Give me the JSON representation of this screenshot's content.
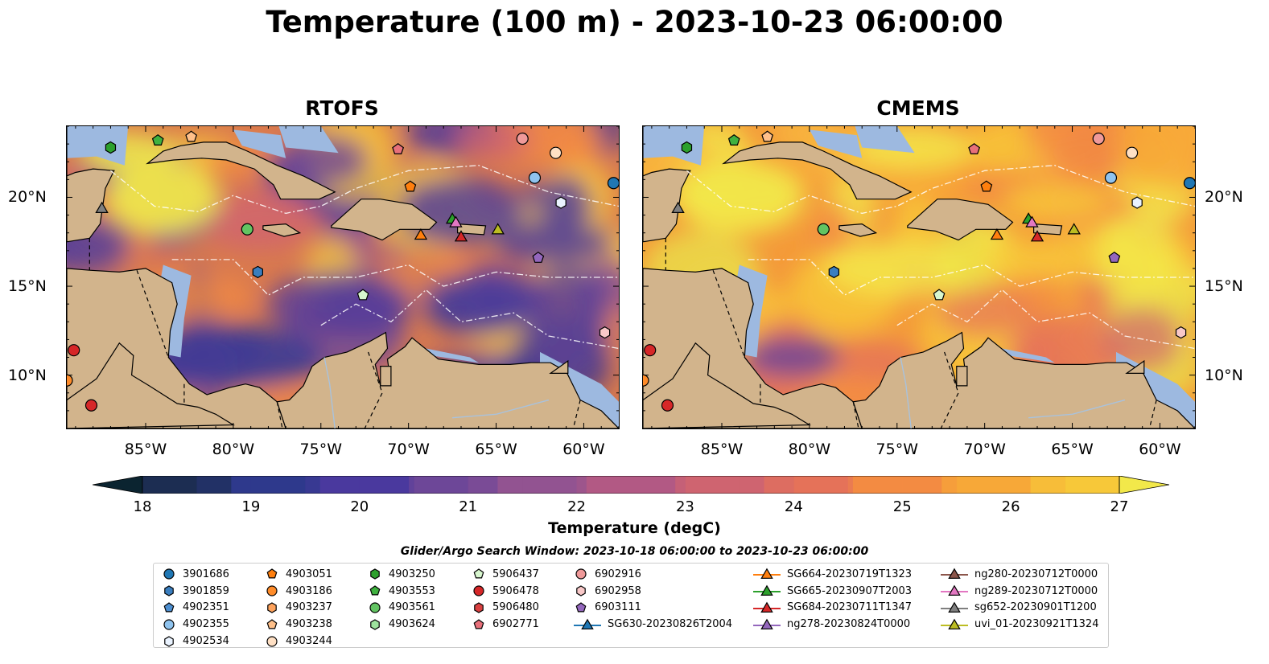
{
  "title": "Temperature (100 m) - 2023-10-23 06:00:00",
  "panels": [
    {
      "id": "rtofs",
      "title": "RTOFS",
      "style": "cool"
    },
    {
      "id": "cmems",
      "title": "CMEMS",
      "style": "warm"
    }
  ],
  "map": {
    "lon_range": [
      -89.5,
      -58.0
    ],
    "lat_range": [
      7.0,
      24.0
    ],
    "x_ticks": [
      "85°W",
      "80°W",
      "75°W",
      "70°W",
      "65°W",
      "60°W"
    ],
    "x_tick_values": [
      -85,
      -80,
      -75,
      -70,
      -65,
      -60
    ],
    "y_ticks": [
      "20°N",
      "15°N",
      "10°N"
    ],
    "y_tick_values": [
      20,
      15,
      10
    ],
    "colors": {
      "land": "#d2b48c",
      "shelf": "#9db9e0",
      "deep": "#0c2230",
      "mid": "#5a2d8a",
      "warm": "#f58a3a",
      "hot": "#f2e84a"
    }
  },
  "colorbar": {
    "label": "Temperature (degC)",
    "ticks": [
      "18",
      "19",
      "20",
      "21",
      "22",
      "23",
      "24",
      "25",
      "26",
      "27"
    ],
    "min": 18,
    "max": 27,
    "extend": "both",
    "colors": [
      "#0b2430",
      "#1c2d52",
      "#2e3a8c",
      "#4a3a9e",
      "#6e4799",
      "#925391",
      "#b25a84",
      "#cf6470",
      "#e5725a",
      "#f38b43",
      "#f7a838",
      "#f7c83a",
      "#f2e84a"
    ]
  },
  "search_window": "Glider/Argo Search Window: 2023-10-18 06:00:00 to 2023-10-23 06:00:00",
  "legend": {
    "columns": [
      [
        {
          "label": "3901686",
          "marker": "circle",
          "color": "#1f77b4"
        },
        {
          "label": "3901859",
          "marker": "hexagon",
          "color": "#3a7ebf"
        },
        {
          "label": "4902351",
          "marker": "pentagon",
          "color": "#4d8fd1"
        },
        {
          "label": "4902355",
          "marker": "circle",
          "color": "#8fc3ee"
        },
        {
          "label": "4902534",
          "marker": "hexagon",
          "color": "#eaf3ff"
        }
      ],
      [
        {
          "label": "4903051",
          "marker": "pentagon",
          "color": "#ff7f0e"
        },
        {
          "label": "4903186",
          "marker": "circle",
          "color": "#ff8c2a"
        },
        {
          "label": "4903237",
          "marker": "hexagon",
          "color": "#ffa35c"
        },
        {
          "label": "4903238",
          "marker": "pentagon",
          "color": "#ffc08a"
        },
        {
          "label": "4903244",
          "marker": "circle",
          "color": "#ffe0c4"
        }
      ],
      [
        {
          "label": "4903250",
          "marker": "hexagon",
          "color": "#2ca02c"
        },
        {
          "label": "4903553",
          "marker": "pentagon",
          "color": "#3fb13f"
        },
        {
          "label": "4903561",
          "marker": "circle",
          "color": "#62c462"
        },
        {
          "label": "4903624",
          "marker": "hexagon",
          "color": "#9ee39e"
        }
      ],
      [
        {
          "label": "5906437",
          "marker": "pentagon",
          "color": "#d8f7cf"
        },
        {
          "label": "5906478",
          "marker": "circle",
          "color": "#d62728"
        },
        {
          "label": "5906480",
          "marker": "hexagon",
          "color": "#d94040"
        },
        {
          "label": "6902771",
          "marker": "pentagon",
          "color": "#e8707a"
        }
      ],
      [
        {
          "label": "6902916",
          "marker": "circle",
          "color": "#f09a9a"
        },
        {
          "label": "6902958",
          "marker": "hexagon",
          "color": "#f8c8c8"
        },
        {
          "label": "6903111",
          "marker": "pentagon",
          "color": "#9467bd"
        },
        {
          "label": "SG630-20230826T2004",
          "marker": "triangle-line",
          "color": "#1f77b4"
        }
      ],
      [
        {
          "label": "SG664-20230719T1323",
          "marker": "triangle-line",
          "color": "#ff7f0e"
        },
        {
          "label": "SG665-20230907T2003",
          "marker": "triangle-line",
          "color": "#2ca02c"
        },
        {
          "label": "SG684-20230711T1347",
          "marker": "triangle-line",
          "color": "#d62728"
        },
        {
          "label": "ng278-20230824T0000",
          "marker": "triangle-line",
          "color": "#9467bd"
        }
      ],
      [
        {
          "label": "ng280-20230712T0000",
          "marker": "triangle-line",
          "color": "#8c564b"
        },
        {
          "label": "ng289-20230712T0000",
          "marker": "triangle-line",
          "color": "#e377c2"
        },
        {
          "label": "sg652-20230901T1200",
          "marker": "triangle-line",
          "color": "#7f7f7f"
        },
        {
          "label": "uvi_01-20230921T1324",
          "marker": "triangle-line",
          "color": "#bcbd22"
        }
      ]
    ]
  },
  "floats": [
    {
      "lon": -87.0,
      "lat": 22.8,
      "marker": "hexagon",
      "color": "#2ca02c"
    },
    {
      "lon": -84.3,
      "lat": 23.2,
      "marker": "pentagon",
      "color": "#3fb13f"
    },
    {
      "lon": -82.4,
      "lat": 23.4,
      "marker": "pentagon",
      "color": "#ffc08a"
    },
    {
      "lon": -70.6,
      "lat": 22.7,
      "marker": "pentagon",
      "color": "#e8707a"
    },
    {
      "lon": -63.5,
      "lat": 23.3,
      "marker": "circle",
      "color": "#f09a9a"
    },
    {
      "lon": -61.6,
      "lat": 22.5,
      "marker": "circle",
      "color": "#ffe0c4"
    },
    {
      "lon": -58.3,
      "lat": 20.8,
      "marker": "circle",
      "color": "#1f77b4"
    },
    {
      "lon": -62.8,
      "lat": 21.1,
      "marker": "circle",
      "color": "#8fc3ee"
    },
    {
      "lon": -61.3,
      "lat": 19.7,
      "marker": "hexagon",
      "color": "#eaf3ff"
    },
    {
      "lon": -69.9,
      "lat": 20.6,
      "marker": "pentagon",
      "color": "#ff7f0e"
    },
    {
      "lon": -79.2,
      "lat": 18.2,
      "marker": "circle",
      "color": "#62c462"
    },
    {
      "lon": -78.6,
      "lat": 15.8,
      "marker": "hexagon",
      "color": "#3a7ebf"
    },
    {
      "lon": -72.6,
      "lat": 14.5,
      "marker": "pentagon",
      "color": "#d8f7cf"
    },
    {
      "lon": -62.6,
      "lat": 16.6,
      "marker": "pentagon",
      "color": "#9467bd"
    },
    {
      "lon": -58.8,
      "lat": 12.4,
      "marker": "hexagon",
      "color": "#f8c8c8"
    },
    {
      "lon": -89.1,
      "lat": 11.4,
      "marker": "circle",
      "color": "#d62728"
    },
    {
      "lon": -89.5,
      "lat": 9.7,
      "marker": "circle",
      "color": "#ff8c2a"
    },
    {
      "lon": -88.1,
      "lat": 8.3,
      "marker": "circle",
      "color": "#d62728"
    }
  ],
  "gliders": [
    {
      "lon": -87.5,
      "lat": 19.4,
      "color": "#7f7f7f"
    },
    {
      "lon": -69.3,
      "lat": 17.9,
      "color": "#ff7f0e"
    },
    {
      "lon": -67.5,
      "lat": 18.8,
      "color": "#2ca02c"
    },
    {
      "lon": -67.3,
      "lat": 18.6,
      "color": "#e377c2"
    },
    {
      "lon": -67.0,
      "lat": 17.8,
      "color": "#d62728"
    },
    {
      "lon": -64.9,
      "lat": 18.2,
      "color": "#bcbd22"
    }
  ]
}
